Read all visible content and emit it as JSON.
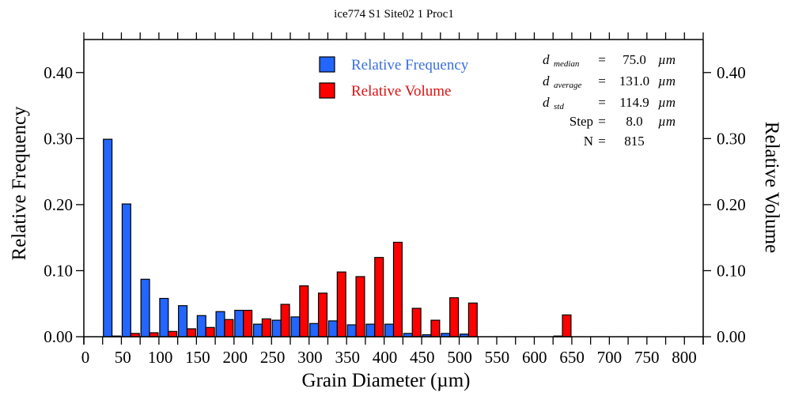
{
  "chart_data": {
    "type": "bar",
    "title": "ice774 S1 Site02 1 Proc1",
    "xlabel": "Grain Diameter (µm)",
    "ylabel": "Relative Frequency",
    "y2label": "Relative Volume",
    "xlim": [
      0,
      825
    ],
    "ylim": [
      0,
      0.45
    ],
    "bin_width": 25,
    "x_tick_labels": [
      "0",
      "50",
      "100",
      "150",
      "200",
      "250",
      "300",
      "350",
      "400",
      "450",
      "500",
      "550",
      "600",
      "650",
      "700",
      "750",
      "800"
    ],
    "y_tick_labels": [
      "0.00",
      "0.10",
      "0.20",
      "0.30",
      "0.40"
    ],
    "y_ticks": [
      0,
      0.1,
      0.2,
      0.3,
      0.4
    ],
    "grid": false,
    "legend_position": "top-center",
    "bin_starts": [
      25,
      50,
      75,
      100,
      125,
      150,
      175,
      200,
      225,
      250,
      275,
      300,
      325,
      350,
      375,
      400,
      425,
      450,
      475,
      500,
      625
    ],
    "series": [
      {
        "name": "Relative Frequency",
        "color": "#2266ff",
        "values": [
          0.299,
          0.201,
          0.087,
          0.058,
          0.047,
          0.032,
          0.038,
          0.04,
          0.019,
          0.025,
          0.03,
          0.02,
          0.024,
          0.018,
          0.019,
          0.019,
          0.005,
          0.003,
          0.005,
          0.004,
          0.001
        ]
      },
      {
        "name": "Relative Volume",
        "color": "#ff0000",
        "values": [
          0.001,
          0.005,
          0.006,
          0.008,
          0.012,
          0.014,
          0.026,
          0.04,
          0.027,
          0.049,
          0.077,
          0.066,
          0.098,
          0.091,
          0.12,
          0.143,
          0.043,
          0.025,
          0.059,
          0.051,
          0.033
        ]
      }
    ],
    "legend_text_colors": [
      "#3a6fe0",
      "#e01010"
    ],
    "stats": [
      {
        "symbol": "d",
        "subscript": "median",
        "eq": "=",
        "value": "75.0",
        "unit": "µm"
      },
      {
        "symbol": "d",
        "subscript": "average",
        "eq": "=",
        "value": "131.0",
        "unit": "µm"
      },
      {
        "symbol": "d",
        "subscript": "std",
        "eq": "=",
        "value": "114.9",
        "unit": "µm"
      },
      {
        "symbol": "Step",
        "subscript": "",
        "eq": "=",
        "value": "8.0",
        "unit": "µm"
      },
      {
        "symbol": "N",
        "subscript": "",
        "eq": "=",
        "value": "815",
        "unit": ""
      }
    ]
  }
}
